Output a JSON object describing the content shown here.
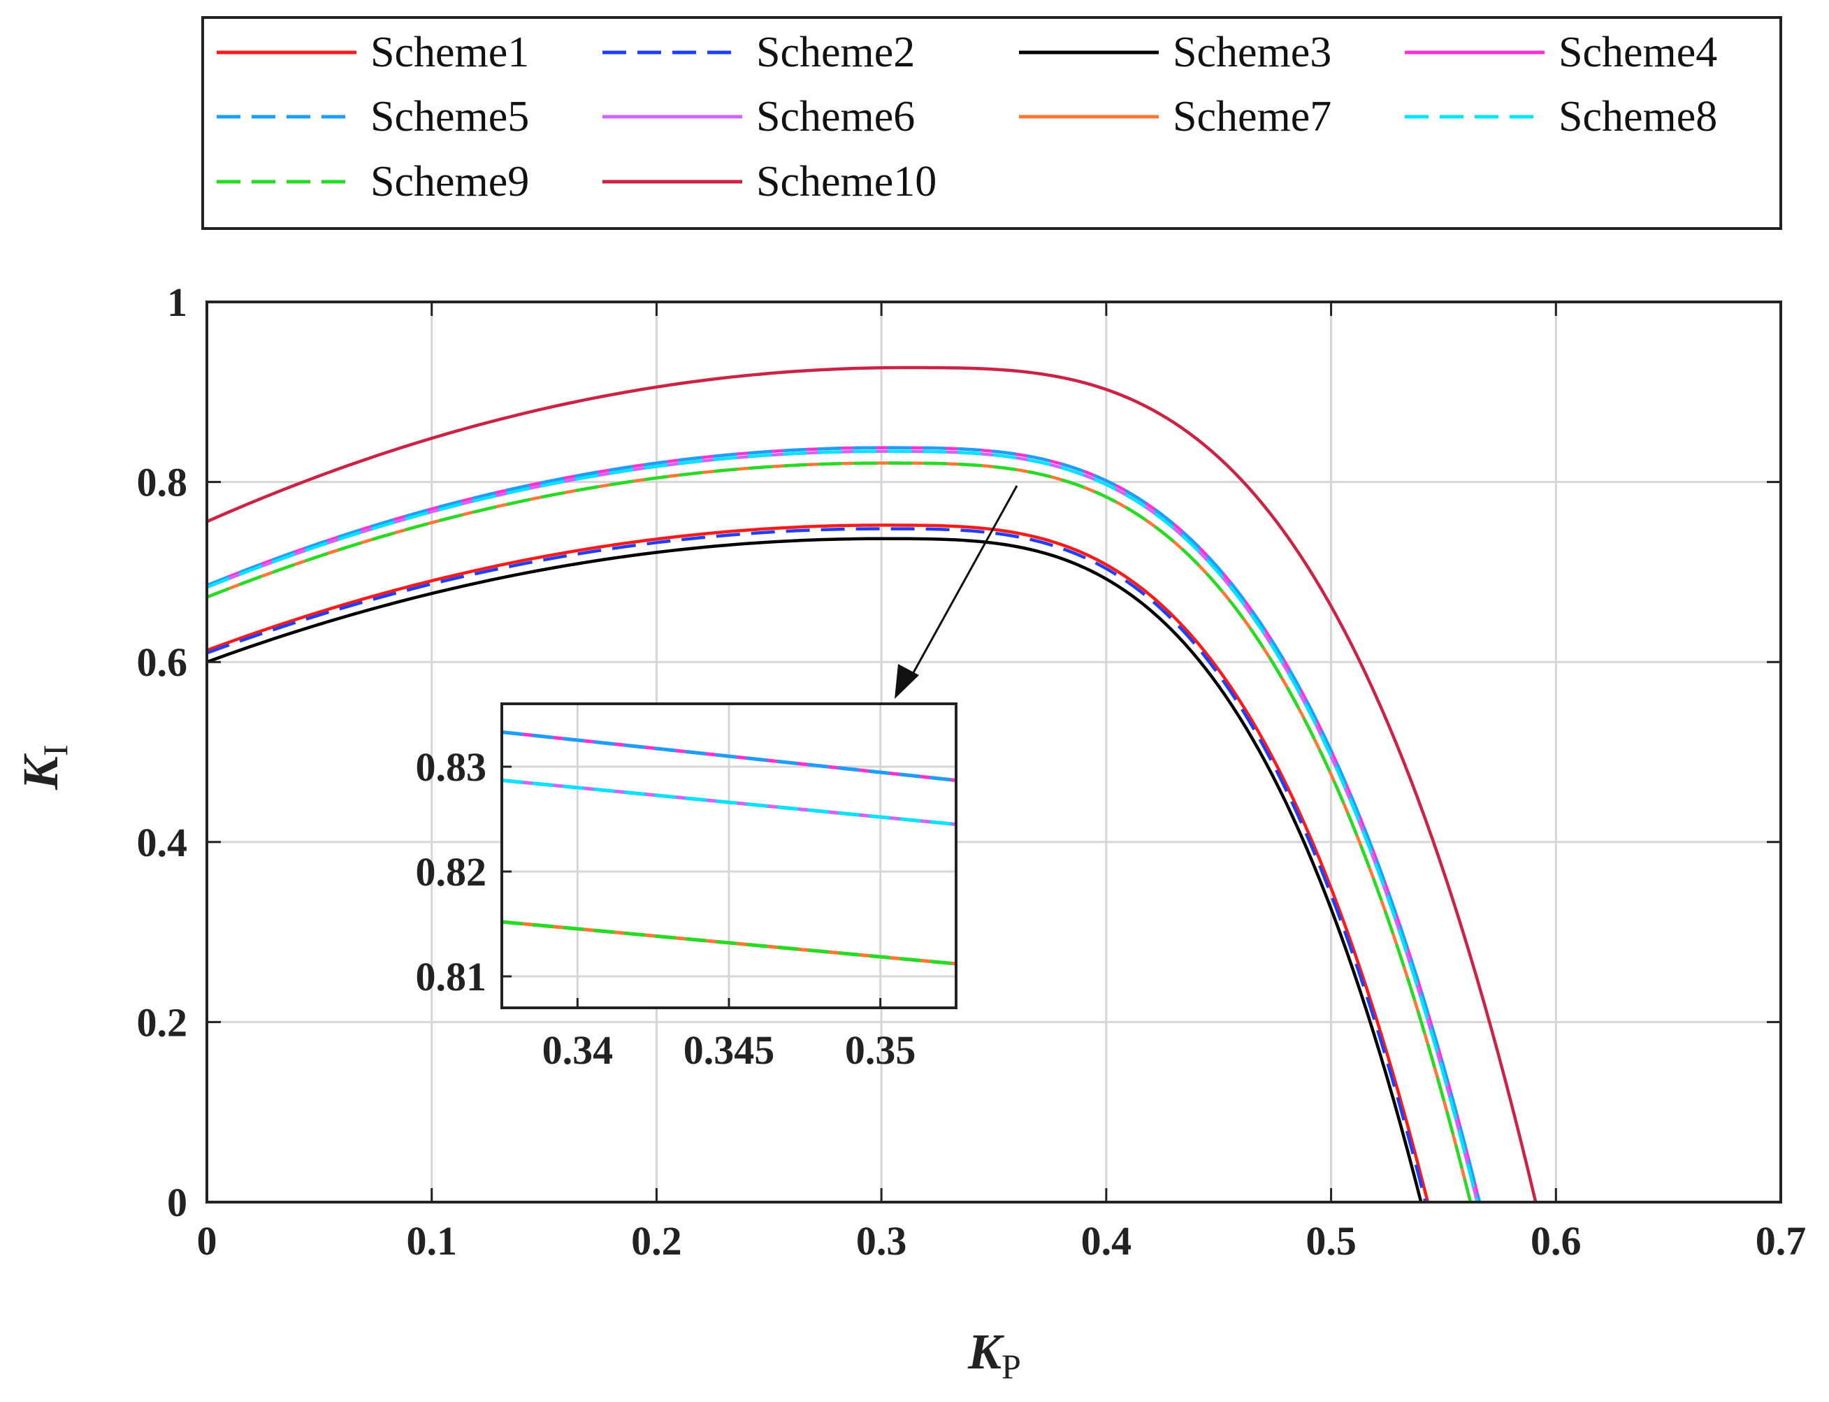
{
  "chart_data": {
    "type": "line",
    "title": "",
    "xlabel": {
      "main": "K",
      "sub": "P"
    },
    "ylabel": {
      "main": "K",
      "sub": "I"
    },
    "xlim": [
      0,
      0.7
    ],
    "ylim": [
      0,
      1
    ],
    "xticks": [
      0,
      0.1,
      0.2,
      0.3,
      0.4,
      0.5,
      0.6,
      0.7
    ],
    "xtick_labels": [
      "0",
      "0.1",
      "0.2",
      "0.3",
      "0.4",
      "0.5",
      "0.6",
      "0.7"
    ],
    "yticks": [
      0,
      0.2,
      0.4,
      0.6,
      0.8,
      1
    ],
    "ytick_labels": [
      "0",
      "0.2",
      "0.4",
      "0.6",
      "0.8",
      "1"
    ],
    "grid": true,
    "legend_position": "top",
    "series": [
      {
        "name": "Scheme1",
        "color": "#ff1a1a",
        "dash": "solid",
        "params": {
          "y0": 0.613,
          "peak_x": 0.3,
          "peak_y": 0.752,
          "end_x": 0.543
        }
      },
      {
        "name": "Scheme2",
        "color": "#1f3fff",
        "dash": "dashed",
        "params": {
          "y0": 0.61,
          "peak_x": 0.3,
          "peak_y": 0.748,
          "end_x": 0.542
        }
      },
      {
        "name": "Scheme3",
        "color": "#000000",
        "dash": "solid",
        "params": {
          "y0": 0.6,
          "peak_x": 0.3,
          "peak_y": 0.737,
          "end_x": 0.54
        }
      },
      {
        "name": "Scheme4",
        "color": "#ff33cc",
        "dash": "solid",
        "params": {
          "y0": 0.685,
          "peak_x": 0.3,
          "peak_y": 0.838,
          "end_x": 0.566
        }
      },
      {
        "name": "Scheme5",
        "color": "#1a9fff",
        "dash": "dashed",
        "params": {
          "y0": 0.685,
          "peak_x": 0.3,
          "peak_y": 0.838,
          "end_x": 0.566
        }
      },
      {
        "name": "Scheme6",
        "color": "#cc66ff",
        "dash": "solid",
        "params": {
          "y0": 0.683,
          "peak_x": 0.3,
          "peak_y": 0.834,
          "end_x": 0.565
        }
      },
      {
        "name": "Scheme7",
        "color": "#ff7733",
        "dash": "solid",
        "params": {
          "y0": 0.672,
          "peak_x": 0.3,
          "peak_y": 0.821,
          "end_x": 0.562
        }
      },
      {
        "name": "Scheme8",
        "color": "#00e5ff",
        "dash": "dashed",
        "params": {
          "y0": 0.683,
          "peak_x": 0.3,
          "peak_y": 0.834,
          "end_x": 0.565
        }
      },
      {
        "name": "Scheme9",
        "color": "#22dd22",
        "dash": "dashed",
        "params": {
          "y0": 0.672,
          "peak_x": 0.3,
          "peak_y": 0.821,
          "end_x": 0.562
        }
      },
      {
        "name": "Scheme10",
        "color": "#cc2244",
        "dash": "solid",
        "params": {
          "y0": 0.756,
          "peak_x": 0.31,
          "peak_y": 0.927,
          "end_x": 0.591
        }
      }
    ],
    "inset": {
      "xlim": [
        0.3375,
        0.3525
      ],
      "ylim": [
        0.807,
        0.836
      ],
      "xticks": [
        0.34,
        0.345,
        0.35
      ],
      "xtick_labels": [
        "0.34",
        "0.345",
        "0.35"
      ],
      "yticks": [
        0.81,
        0.82,
        0.83
      ],
      "ytick_labels": [
        "0.81",
        "0.82",
        "0.83"
      ],
      "lines": [
        {
          "group": "upper",
          "colors": [
            "#ff33cc",
            "#1a9fff"
          ],
          "x": [
            0.3375,
            0.3525
          ],
          "y": [
            0.8333,
            0.8287
          ]
        },
        {
          "group": "middle",
          "colors": [
            "#cc66ff",
            "#00e5ff"
          ],
          "x": [
            0.3375,
            0.3525
          ],
          "y": [
            0.8287,
            0.8245
          ]
        },
        {
          "group": "lower",
          "colors": [
            "#ff7733",
            "#22dd22"
          ],
          "x": [
            0.3375,
            0.3525
          ],
          "y": [
            0.8152,
            0.8112
          ]
        }
      ]
    }
  }
}
